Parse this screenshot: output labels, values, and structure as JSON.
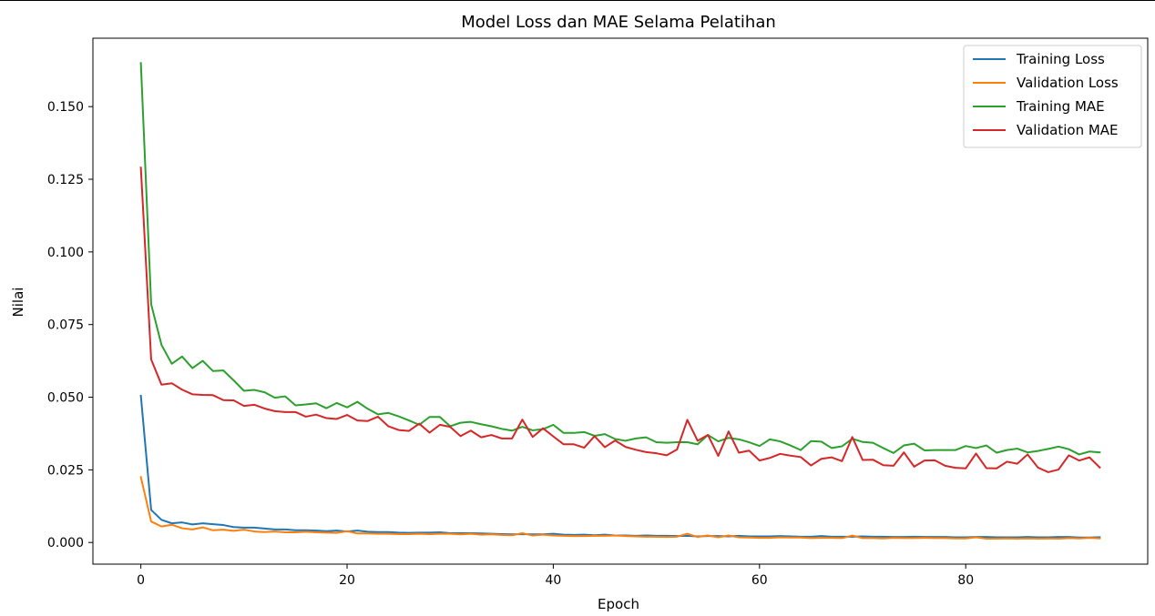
{
  "chart_data": {
    "type": "line",
    "title": "Model Loss dan MAE Selama Pelatihan",
    "xlabel": "Epoch",
    "ylabel": "Nilai",
    "xlim": [
      -4.65,
      97.65
    ],
    "ylim": [
      -0.00745,
      0.17354
    ],
    "x_ticks": [
      0,
      20,
      40,
      60,
      80
    ],
    "x_tick_labels": [
      "0",
      "20",
      "40",
      "60",
      "80"
    ],
    "y_ticks": [
      0.0,
      0.025,
      0.05,
      0.075,
      0.1,
      0.125,
      0.15
    ],
    "y_tick_labels": [
      "0.000",
      "0.025",
      "0.050",
      "0.075",
      "0.100",
      "0.125",
      "0.150"
    ],
    "grid": false,
    "legend_position": "top-right",
    "x": [
      0,
      1,
      2,
      3,
      4,
      5,
      6,
      7,
      8,
      9,
      10,
      11,
      12,
      13,
      14,
      15,
      16,
      17,
      18,
      19,
      20,
      21,
      22,
      23,
      24,
      25,
      26,
      27,
      28,
      29,
      30,
      31,
      32,
      33,
      34,
      35,
      36,
      37,
      38,
      39,
      40,
      41,
      42,
      43,
      44,
      45,
      46,
      47,
      48,
      49,
      50,
      51,
      52,
      53,
      54,
      55,
      56,
      57,
      58,
      59,
      60,
      61,
      62,
      63,
      64,
      65,
      66,
      67,
      68,
      69,
      70,
      71,
      72,
      73,
      74,
      75,
      76,
      77,
      78,
      79,
      80,
      81,
      82,
      83,
      84,
      85,
      86,
      87,
      88,
      89,
      90,
      91,
      92,
      93
    ],
    "series": [
      {
        "name": "Training Loss",
        "color": "#1f77b4",
        "values": [
          0.0505,
          0.0112,
          0.0078,
          0.0066,
          0.0069,
          0.0062,
          0.0066,
          0.0063,
          0.006,
          0.0053,
          0.0051,
          0.0051,
          0.0048,
          0.0045,
          0.0045,
          0.0042,
          0.0042,
          0.0041,
          0.0039,
          0.0041,
          0.0038,
          0.0041,
          0.0037,
          0.0036,
          0.0036,
          0.0034,
          0.0033,
          0.0034,
          0.0034,
          0.0035,
          0.0032,
          0.0032,
          0.0032,
          0.0031,
          0.003,
          0.0029,
          0.0028,
          0.0029,
          0.0028,
          0.0028,
          0.003,
          0.0027,
          0.0026,
          0.0027,
          0.0025,
          0.0027,
          0.0024,
          0.0024,
          0.0023,
          0.0024,
          0.0023,
          0.0023,
          0.0022,
          0.0023,
          0.0021,
          0.0022,
          0.0022,
          0.0021,
          0.0023,
          0.0021,
          0.0021,
          0.0021,
          0.0022,
          0.0021,
          0.002,
          0.002,
          0.0022,
          0.002,
          0.002,
          0.002,
          0.0021,
          0.002,
          0.002,
          0.0019,
          0.0019,
          0.002,
          0.0019,
          0.0019,
          0.0019,
          0.0018,
          0.0018,
          0.0019,
          0.0019,
          0.0018,
          0.0018,
          0.0018,
          0.0019,
          0.0018,
          0.0018,
          0.0019,
          0.0019,
          0.0017,
          0.0017,
          0.0018
        ]
      },
      {
        "name": "Validation Loss",
        "color": "#ff7f0e",
        "values": [
          0.0225,
          0.0072,
          0.0055,
          0.0061,
          0.0049,
          0.0045,
          0.0052,
          0.0042,
          0.0044,
          0.004,
          0.0044,
          0.0038,
          0.0036,
          0.0038,
          0.0035,
          0.0035,
          0.0037,
          0.0035,
          0.0034,
          0.0033,
          0.0039,
          0.0031,
          0.0031,
          0.003,
          0.003,
          0.0029,
          0.0029,
          0.003,
          0.0029,
          0.003,
          0.003,
          0.0028,
          0.003,
          0.0027,
          0.0028,
          0.0026,
          0.0025,
          0.0032,
          0.0024,
          0.0027,
          0.0024,
          0.0023,
          0.0022,
          0.0022,
          0.0023,
          0.0023,
          0.0024,
          0.0022,
          0.0021,
          0.002,
          0.002,
          0.0019,
          0.002,
          0.003,
          0.0019,
          0.0024,
          0.0018,
          0.0024,
          0.0018,
          0.0017,
          0.0016,
          0.0016,
          0.0018,
          0.0017,
          0.0017,
          0.0015,
          0.0016,
          0.0016,
          0.0015,
          0.0024,
          0.0015,
          0.0015,
          0.0014,
          0.0016,
          0.0015,
          0.0015,
          0.0016,
          0.0015,
          0.0015,
          0.0014,
          0.0014,
          0.0018,
          0.0013,
          0.0013,
          0.0014,
          0.0013,
          0.0014,
          0.0013,
          0.0014,
          0.0013,
          0.0015,
          0.0014,
          0.0016,
          0.0014
        ]
      },
      {
        "name": "Training MAE",
        "color": "#2ca02c",
        "values": [
          0.165,
          0.082,
          0.068,
          0.0615,
          0.064,
          0.06,
          0.0625,
          0.059,
          0.0592,
          0.0558,
          0.0522,
          0.0525,
          0.0517,
          0.0498,
          0.0503,
          0.0472,
          0.0475,
          0.0479,
          0.0462,
          0.048,
          0.0465,
          0.0484,
          0.046,
          0.0441,
          0.0446,
          0.0434,
          0.042,
          0.0405,
          0.0432,
          0.0432,
          0.04,
          0.0412,
          0.0415,
          0.0407,
          0.04,
          0.0391,
          0.0385,
          0.0398,
          0.0386,
          0.039,
          0.0405,
          0.0377,
          0.0377,
          0.038,
          0.0367,
          0.0373,
          0.0356,
          0.035,
          0.0358,
          0.0362,
          0.0345,
          0.0343,
          0.0345,
          0.0345,
          0.0338,
          0.037,
          0.0348,
          0.036,
          0.0355,
          0.0345,
          0.0332,
          0.0355,
          0.0348,
          0.0334,
          0.0318,
          0.0349,
          0.0347,
          0.0325,
          0.0331,
          0.0357,
          0.0346,
          0.0343,
          0.0325,
          0.0308,
          0.0334,
          0.034,
          0.0317,
          0.0318,
          0.0318,
          0.0318,
          0.0332,
          0.0325,
          0.0334,
          0.0309,
          0.0318,
          0.0323,
          0.031,
          0.0315,
          0.0322,
          0.033,
          0.0321,
          0.0303,
          0.0313,
          0.031
        ]
      },
      {
        "name": "Validation MAE",
        "color": "#d62728",
        "values": [
          0.129,
          0.063,
          0.0543,
          0.0548,
          0.0526,
          0.051,
          0.0508,
          0.0507,
          0.049,
          0.0489,
          0.047,
          0.0474,
          0.0461,
          0.0452,
          0.0449,
          0.0449,
          0.0433,
          0.044,
          0.0428,
          0.0425,
          0.0439,
          0.042,
          0.0418,
          0.0433,
          0.04,
          0.0387,
          0.0384,
          0.0409,
          0.0378,
          0.0405,
          0.0398,
          0.0366,
          0.0385,
          0.0362,
          0.037,
          0.0358,
          0.0358,
          0.0423,
          0.0363,
          0.0393,
          0.0365,
          0.0338,
          0.0338,
          0.0326,
          0.0366,
          0.0328,
          0.0351,
          0.0329,
          0.0319,
          0.0311,
          0.0307,
          0.03,
          0.032,
          0.0422,
          0.035,
          0.037,
          0.0298,
          0.0382,
          0.0309,
          0.0316,
          0.0282,
          0.0291,
          0.0305,
          0.0299,
          0.0294,
          0.0265,
          0.0288,
          0.0293,
          0.028,
          0.0363,
          0.0284,
          0.0285,
          0.0266,
          0.0264,
          0.031,
          0.0261,
          0.0282,
          0.0283,
          0.0264,
          0.0257,
          0.0255,
          0.0306,
          0.0256,
          0.0255,
          0.0278,
          0.0271,
          0.0303,
          0.0258,
          0.0242,
          0.0251,
          0.03,
          0.0282,
          0.0293,
          0.0258
        ]
      }
    ]
  }
}
